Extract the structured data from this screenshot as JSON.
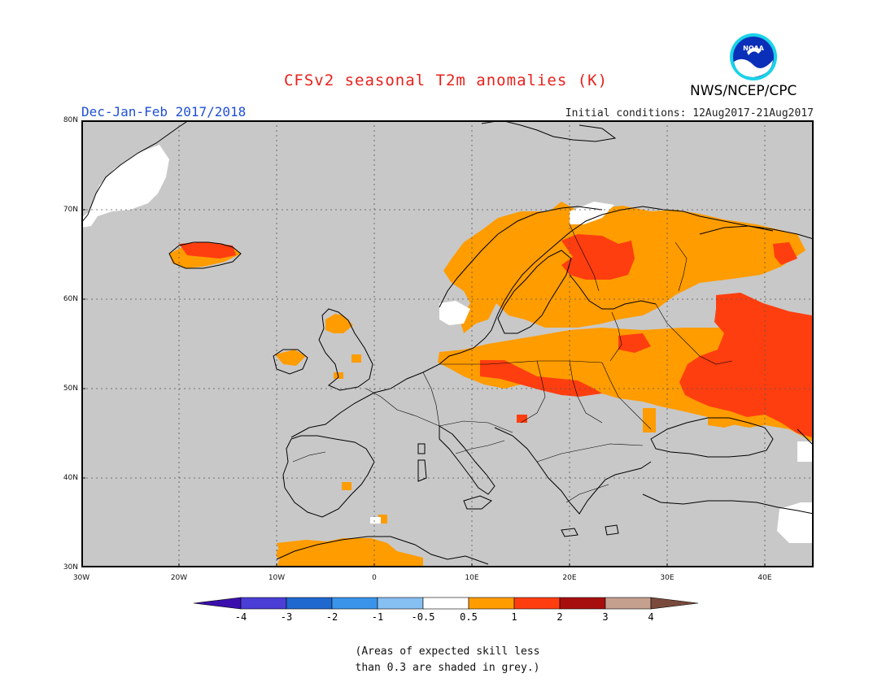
{
  "title": "CFSv2 seasonal T2m anomalies (K)",
  "season": "Dec-Jan-Feb 2017/2018",
  "initial_conditions": "Initial conditions: 12Aug2017-21Aug2017",
  "agency": "NWS/NCEP/CPC",
  "logo": {
    "text": "NOAA",
    "icon": "noaa-logo"
  },
  "map": {
    "region": "Europe",
    "lon_range": [
      -30,
      45
    ],
    "lat_range": [
      30,
      80
    ],
    "lat_ticks": [
      "80N",
      "70N",
      "60N",
      "50N",
      "40N",
      "30N"
    ],
    "lon_ticks": [
      "30W",
      "20W",
      "10W",
      "0",
      "10E",
      "20E",
      "30E",
      "40E"
    ],
    "land_color": "#c8c8c8",
    "grid": true
  },
  "colorbar": {
    "labels": [
      "-4",
      "-3",
      "-2",
      "-1",
      "-0.5",
      "0.5",
      "1",
      "2",
      "3",
      "4"
    ],
    "colors": [
      "#3b0fae",
      "#4a3ed6",
      "#1f68cf",
      "#3a94ea",
      "#86c0f2",
      "#ffffff",
      "#ff9c00",
      "#ff3e10",
      "#a70f0f",
      "#c6a08f",
      "#7a4a3c"
    ]
  },
  "note": {
    "line1": "(Areas of expected skill less",
    "line2": "than 0.3 are shaded in grey.)"
  }
}
